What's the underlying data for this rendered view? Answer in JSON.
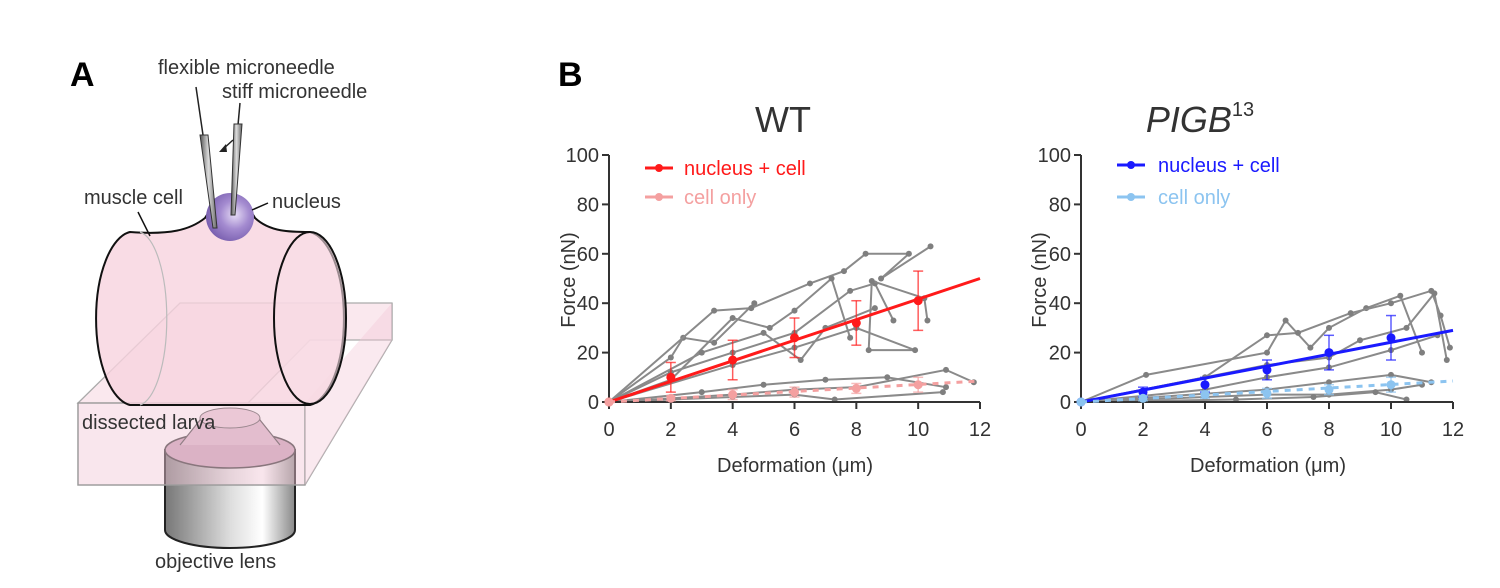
{
  "panels": {
    "a": "A",
    "b": "B"
  },
  "diagram": {
    "labels": {
      "flexible_needle": "flexible microneedle",
      "stiff_needle": "stiff microneedle",
      "muscle_cell": "muscle cell",
      "nucleus": "nucleus",
      "larva": "dissected larva",
      "lens": "objective lens"
    },
    "colors": {
      "cell": "#f7d3df",
      "nucleus": "#9b7fc9",
      "lens": "#b8b8b8"
    }
  },
  "chart_data": [
    {
      "type": "line",
      "title": "WT",
      "title_sup": "",
      "xlabel": "Deformation (μm)",
      "ylabel": "Force (nN)",
      "xlim": [
        0,
        12
      ],
      "ylim": [
        0,
        100
      ],
      "xticks": [
        "0",
        "2",
        "4",
        "6",
        "8",
        "10",
        "12"
      ],
      "yticks": [
        "0",
        "20",
        "40",
        "60",
        "80",
        "100"
      ],
      "legend_position": "top-left",
      "series": [
        {
          "name": "nucleus + cell",
          "color": "#ff1a1a",
          "dashed": false,
          "x": [
            0,
            2,
            4,
            6,
            8,
            10
          ],
          "y": [
            0,
            10,
            17,
            26,
            32,
            41
          ],
          "err": [
            0,
            6,
            8,
            8,
            9,
            12
          ],
          "fit_end": [
            12,
            50
          ]
        },
        {
          "name": "cell only",
          "color": "#f4a0a0",
          "dashed": true,
          "x": [
            0,
            2,
            4,
            6,
            8,
            10
          ],
          "y": [
            0,
            1.5,
            3,
            4,
            5.5,
            7
          ],
          "err": [
            0,
            1,
            2,
            2,
            2,
            3
          ],
          "fit_end": [
            12,
            8.5
          ]
        }
      ],
      "individual_traces": [
        [
          [
            0,
            0
          ],
          [
            2,
            18
          ],
          [
            2.4,
            26
          ],
          [
            3.4,
            24
          ],
          [
            4.7,
            40
          ]
        ],
        [
          [
            0,
            0
          ],
          [
            3.4,
            37
          ],
          [
            4.6,
            38
          ],
          [
            6.5,
            48
          ],
          [
            7.6,
            53
          ],
          [
            8.3,
            60
          ],
          [
            9.7,
            60
          ],
          [
            8.8,
            50
          ],
          [
            10.4,
            63
          ]
        ],
        [
          [
            0,
            0
          ],
          [
            2,
            12
          ],
          [
            4,
            20
          ],
          [
            6,
            28
          ],
          [
            7.8,
            45
          ],
          [
            8.6,
            48
          ],
          [
            9.2,
            33
          ]
        ],
        [
          [
            0,
            0
          ],
          [
            4,
            15
          ],
          [
            6,
            22
          ],
          [
            8,
            30
          ],
          [
            9.9,
            21
          ],
          [
            8.4,
            21
          ],
          [
            8.5,
            49
          ],
          [
            10.2,
            42
          ],
          [
            10.3,
            33
          ]
        ],
        [
          [
            0,
            0
          ],
          [
            2,
            9
          ],
          [
            4,
            34
          ],
          [
            5.2,
            30
          ],
          [
            6,
            37
          ],
          [
            7.2,
            50
          ],
          [
            7.8,
            26
          ]
        ],
        [
          [
            0,
            0
          ],
          [
            3,
            20
          ],
          [
            5,
            28
          ],
          [
            6.2,
            17
          ],
          [
            7,
            30
          ],
          [
            8.6,
            38
          ]
        ],
        [
          [
            0,
            0
          ],
          [
            4,
            3
          ],
          [
            6,
            5
          ],
          [
            8,
            6
          ],
          [
            10.9,
            13
          ],
          [
            11.8,
            8
          ]
        ],
        [
          [
            0,
            0
          ],
          [
            3,
            4
          ],
          [
            5,
            7
          ],
          [
            7,
            9
          ],
          [
            9,
            10
          ],
          [
            10.9,
            6
          ]
        ],
        [
          [
            0,
            0
          ],
          [
            2,
            1
          ],
          [
            4,
            2
          ],
          [
            6,
            3
          ],
          [
            7.3,
            1
          ],
          [
            10.8,
            4
          ]
        ]
      ]
    },
    {
      "type": "line",
      "title": "PIGB",
      "title_sup": "13",
      "xlabel": "Deformation (μm)",
      "ylabel": "Force (nN)",
      "xlim": [
        0,
        12
      ],
      "ylim": [
        0,
        100
      ],
      "xticks": [
        "0",
        "2",
        "4",
        "6",
        "8",
        "10",
        "12"
      ],
      "yticks": [
        "0",
        "20",
        "40",
        "60",
        "80",
        "100"
      ],
      "legend_position": "top-left",
      "series": [
        {
          "name": "nucleus + cell",
          "color": "#1a1aff",
          "dashed": false,
          "x": [
            0,
            2,
            4,
            6,
            8,
            10
          ],
          "y": [
            0,
            4,
            7,
            13,
            20,
            26
          ],
          "err": [
            0,
            2,
            3,
            4,
            7,
            9
          ],
          "fit_end": [
            12,
            29
          ]
        },
        {
          "name": "cell only",
          "color": "#8cc4f0",
          "dashed": true,
          "x": [
            0,
            2,
            4,
            6,
            8,
            10
          ],
          "y": [
            0,
            1.5,
            3,
            3.5,
            5,
            7
          ],
          "err": [
            0,
            1,
            1.5,
            2,
            2,
            3
          ],
          "fit_end": [
            12,
            8.5
          ]
        }
      ],
      "individual_traces": [
        [
          [
            0,
            0
          ],
          [
            2.1,
            11
          ],
          [
            6,
            20
          ],
          [
            6.6,
            33
          ],
          [
            7.4,
            22
          ],
          [
            8,
            30
          ],
          [
            9.2,
            38
          ],
          [
            10.3,
            43
          ],
          [
            11,
            20
          ]
        ],
        [
          [
            0,
            0
          ],
          [
            4,
            10
          ],
          [
            6,
            27
          ],
          [
            7,
            28
          ],
          [
            8.7,
            36
          ],
          [
            10,
            40
          ],
          [
            11.3,
            45
          ],
          [
            11.6,
            35
          ],
          [
            11.9,
            22
          ]
        ],
        [
          [
            0,
            0
          ],
          [
            6,
            15
          ],
          [
            8,
            18
          ],
          [
            9,
            25
          ],
          [
            10.5,
            30
          ],
          [
            11.4,
            44
          ],
          [
            11.8,
            17
          ]
        ],
        [
          [
            0,
            0
          ],
          [
            4,
            5
          ],
          [
            6,
            10
          ],
          [
            8,
            14
          ],
          [
            10,
            21
          ],
          [
            11.5,
            27
          ]
        ],
        [
          [
            0,
            0
          ],
          [
            6,
            5
          ],
          [
            8,
            8
          ],
          [
            10,
            11
          ],
          [
            11.3,
            8
          ]
        ],
        [
          [
            0,
            0
          ],
          [
            4,
            2
          ],
          [
            6,
            3
          ],
          [
            8,
            3
          ],
          [
            10,
            5
          ],
          [
            11,
            7
          ]
        ],
        [
          [
            0,
            0
          ],
          [
            5,
            1
          ],
          [
            7.5,
            2
          ],
          [
            9.5,
            4
          ],
          [
            10.5,
            1
          ]
        ]
      ]
    }
  ]
}
